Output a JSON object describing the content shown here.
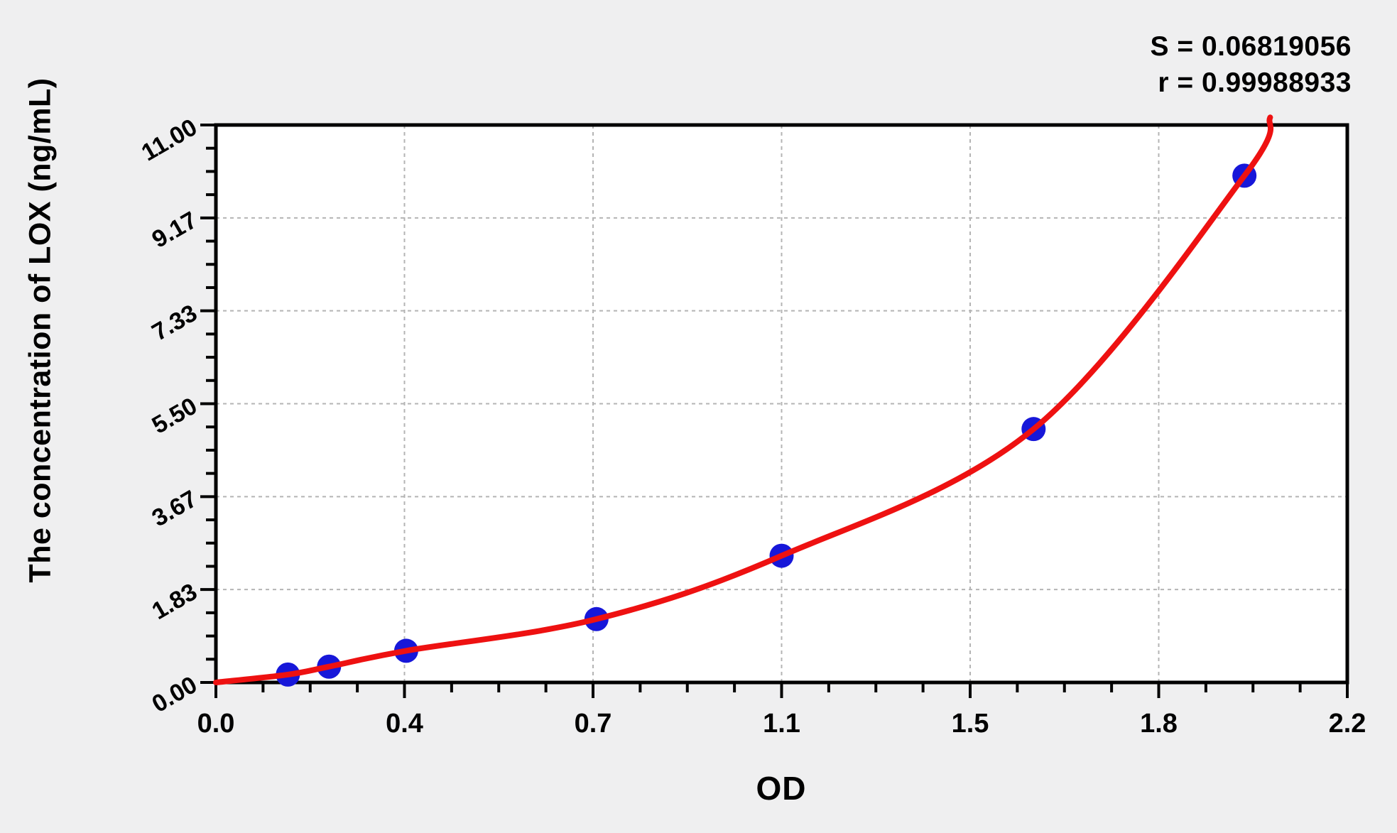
{
  "figure": {
    "background": "#efeff0",
    "y_axis_title": "The concentration of LOX (ng/mL)",
    "x_axis_title": "OD",
    "stats": {
      "s_line": "S = 0.06819056",
      "r_line": "r = 0.99988933"
    }
  },
  "chart_data": {
    "type": "scatter",
    "title": "",
    "xlabel": "OD",
    "ylabel": "The concentration of LOX (ng/mL)",
    "xlim": [
      0,
      2.2
    ],
    "ylim": [
      0,
      11
    ],
    "x_tick_labels": [
      "0.0",
      "0.4",
      "0.7",
      "1.1",
      "1.5",
      "1.8",
      "2.2"
    ],
    "y_tick_labels": [
      "0.00",
      "1.83",
      "3.67",
      "5.50",
      "7.33",
      "9.17",
      "11.00"
    ],
    "minor_ticks_per_interval": 3,
    "grid": {
      "style": "dashed",
      "on_major_ticks": true
    },
    "legend": null,
    "series": [
      {
        "name": "standard-points",
        "type": "scatter",
        "points": [
          {
            "od": 0.14,
            "conc": 0.156
          },
          {
            "od": 0.22,
            "conc": 0.312
          },
          {
            "od": 0.37,
            "conc": 0.625
          },
          {
            "od": 0.74,
            "conc": 1.25
          },
          {
            "od": 1.1,
            "conc": 2.5
          },
          {
            "od": 1.59,
            "conc": 5.0
          },
          {
            "od": 2.0,
            "conc": 10.0
          }
        ]
      },
      {
        "name": "fitted-curve",
        "type": "line",
        "anchors": [
          {
            "od": 0.0,
            "conc": 0.0
          },
          {
            "od": 0.14,
            "conc": 0.156
          },
          {
            "od": 0.22,
            "conc": 0.312
          },
          {
            "od": 0.37,
            "conc": 0.625
          },
          {
            "od": 0.74,
            "conc": 1.25
          },
          {
            "od": 1.1,
            "conc": 2.5
          },
          {
            "od": 1.59,
            "conc": 5.0
          },
          {
            "od": 2.0,
            "conc": 10.0
          },
          {
            "od": 2.05,
            "conc": 11.15
          }
        ]
      }
    ],
    "annotations": {
      "S": "0.06819056",
      "r": "0.99988933"
    },
    "colors": {
      "curve": "#ee1111",
      "points": "#1717d9",
      "grid": "#b4b4b4",
      "frame": "#000000",
      "plot_bg": "#ffffff",
      "fig_bg": "#efeff0",
      "text": "#000000"
    }
  }
}
